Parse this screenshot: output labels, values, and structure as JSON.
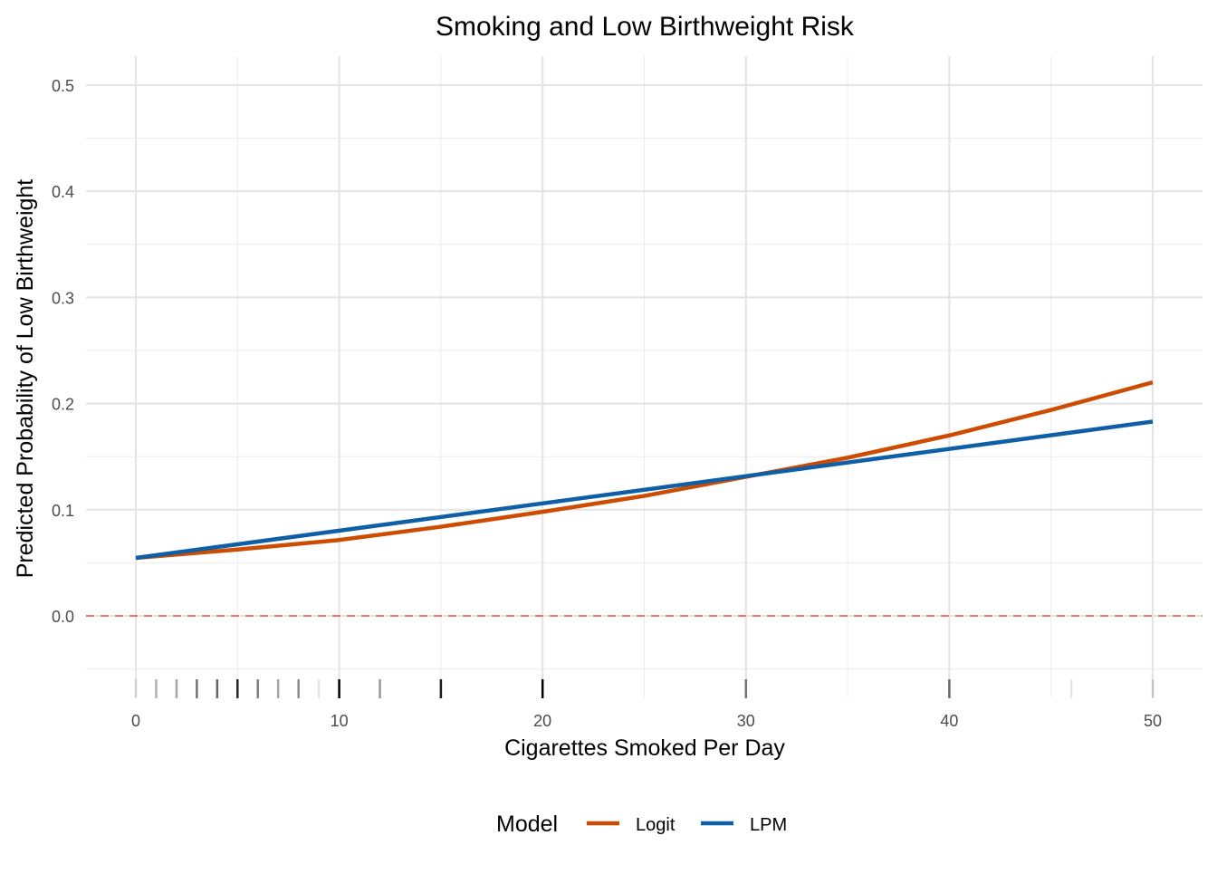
{
  "chart_data": {
    "type": "line",
    "title": "Smoking and Low Birthweight Risk",
    "xlabel": "Cigarettes Smoked Per Day",
    "ylabel": "Predicted Probability of Low Birthweight",
    "xlim": [
      -2.5,
      52.5
    ],
    "ylim": [
      -0.05,
      0.52
    ],
    "xticks": [
      0,
      10,
      20,
      30,
      40,
      50
    ],
    "xtick_labels": [
      "0",
      "10",
      "20",
      "30",
      "40",
      "50"
    ],
    "yticks": [
      0,
      0.1,
      0.2,
      0.3,
      0.4,
      0.5
    ],
    "ytick_labels": [
      "0.0",
      "0.1",
      "0.2",
      "0.3",
      "0.4",
      "0.5"
    ],
    "grid": true,
    "reference_line": {
      "y": 0,
      "style": "dashed",
      "color": "#F07470"
    },
    "legend": {
      "title": "Model",
      "position": "bottom"
    },
    "series": [
      {
        "name": "Logit",
        "color": "#CC4C02",
        "x": [
          0,
          5,
          10,
          15,
          20,
          25,
          30,
          35,
          40,
          45,
          50
        ],
        "y": [
          0.0546,
          0.0625,
          0.0715,
          0.084,
          0.098,
          0.113,
          0.131,
          0.149,
          0.17,
          0.194,
          0.22
        ]
      },
      {
        "name": "LPM",
        "color": "#0F5FA6",
        "x": [
          0,
          50
        ],
        "y": [
          0.0546,
          0.183
        ]
      }
    ],
    "rug": {
      "x": [
        0,
        1,
        2,
        3,
        4,
        5,
        6,
        7,
        8,
        9,
        10,
        12,
        15,
        20,
        30,
        40,
        46,
        50
      ],
      "density": [
        0.1,
        0.3,
        0.35,
        0.55,
        0.6,
        0.85,
        0.5,
        0.35,
        0.45,
        0.1,
        1.0,
        0.4,
        0.9,
        1.0,
        0.5,
        0.55,
        0.1,
        0.15
      ]
    }
  }
}
